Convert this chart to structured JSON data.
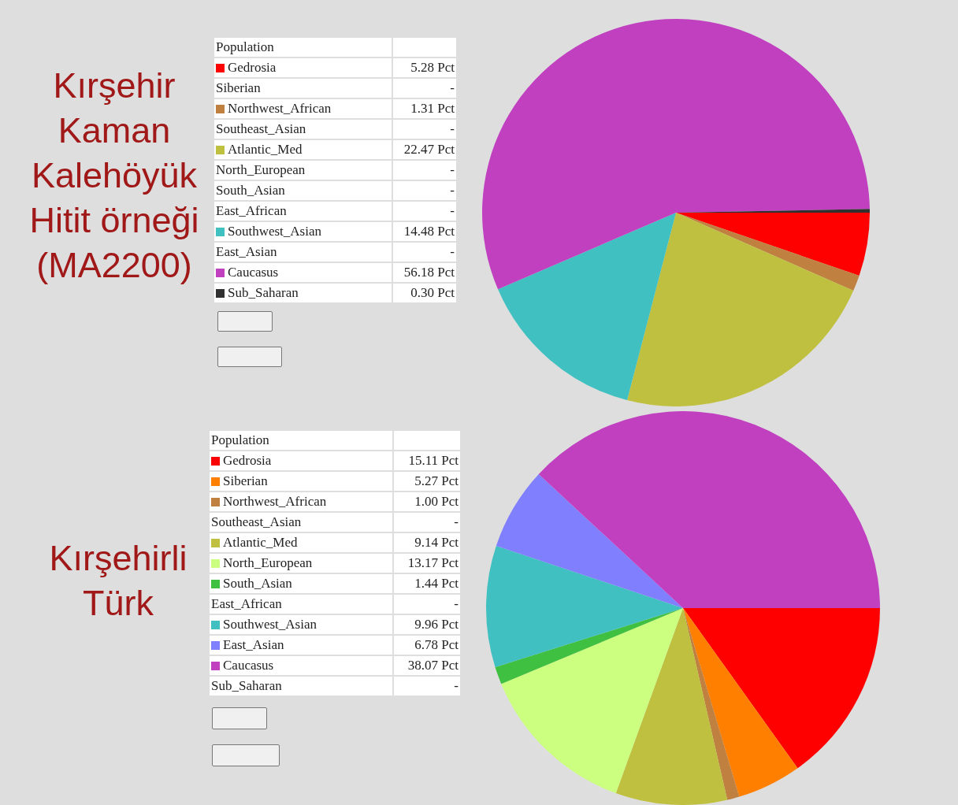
{
  "chart_data": [
    {
      "type": "pie",
      "legend": "left",
      "title": "Kırşehir\nKaman\nKalehöyük\nHitit örneği\n(MA2200)",
      "xlabel": "Population",
      "categories": [
        "Gedrosia",
        "Siberian",
        "Northwest_African",
        "Southeast_Asian",
        "Atlantic_Med",
        "North_European",
        "South_Asian",
        "East_African",
        "Southwest_Asian",
        "East_Asian",
        "Caucasus",
        "Sub_Saharan"
      ],
      "values": [
        5.28,
        null,
        1.31,
        null,
        22.47,
        null,
        null,
        null,
        14.48,
        null,
        56.18,
        0.3
      ],
      "value_labels": [
        "5.28 Pct",
        "-",
        "1.31 Pct",
        "-",
        "22.47 Pct",
        "-",
        "-",
        "-",
        "14.48 Pct",
        "-",
        "56.18 Pct",
        "0.30 Pct"
      ],
      "colors": [
        "#ff0000",
        null,
        "#c08040",
        null,
        "#c0c040",
        null,
        null,
        null,
        "#40c0c0",
        null,
        "#c040c0",
        "#303030"
      ]
    },
    {
      "type": "pie",
      "legend": "left",
      "title": "Kırşehirli\nTürk",
      "xlabel": "Population",
      "categories": [
        "Gedrosia",
        "Siberian",
        "Northwest_African",
        "Southeast_Asian",
        "Atlantic_Med",
        "North_European",
        "South_Asian",
        "East_African",
        "Southwest_Asian",
        "East_Asian",
        "Caucasus",
        "Sub_Saharan"
      ],
      "values": [
        15.11,
        5.27,
        1.0,
        null,
        9.14,
        13.17,
        1.44,
        null,
        9.96,
        6.78,
        38.07,
        null
      ],
      "value_labels": [
        "15.11 Pct",
        "5.27 Pct",
        "1.00 Pct",
        "-",
        "9.14 Pct",
        "13.17 Pct",
        "1.44 Pct",
        "-",
        "9.96 Pct",
        "6.78 Pct",
        "38.07 Pct",
        "-"
      ],
      "colors": [
        "#ff0000",
        "#ff8000",
        "#c08040",
        null,
        "#c0c040",
        "#ccff80",
        "#40c040",
        null,
        "#40c0c0",
        "#8080ff",
        "#c040c0",
        null
      ]
    }
  ]
}
